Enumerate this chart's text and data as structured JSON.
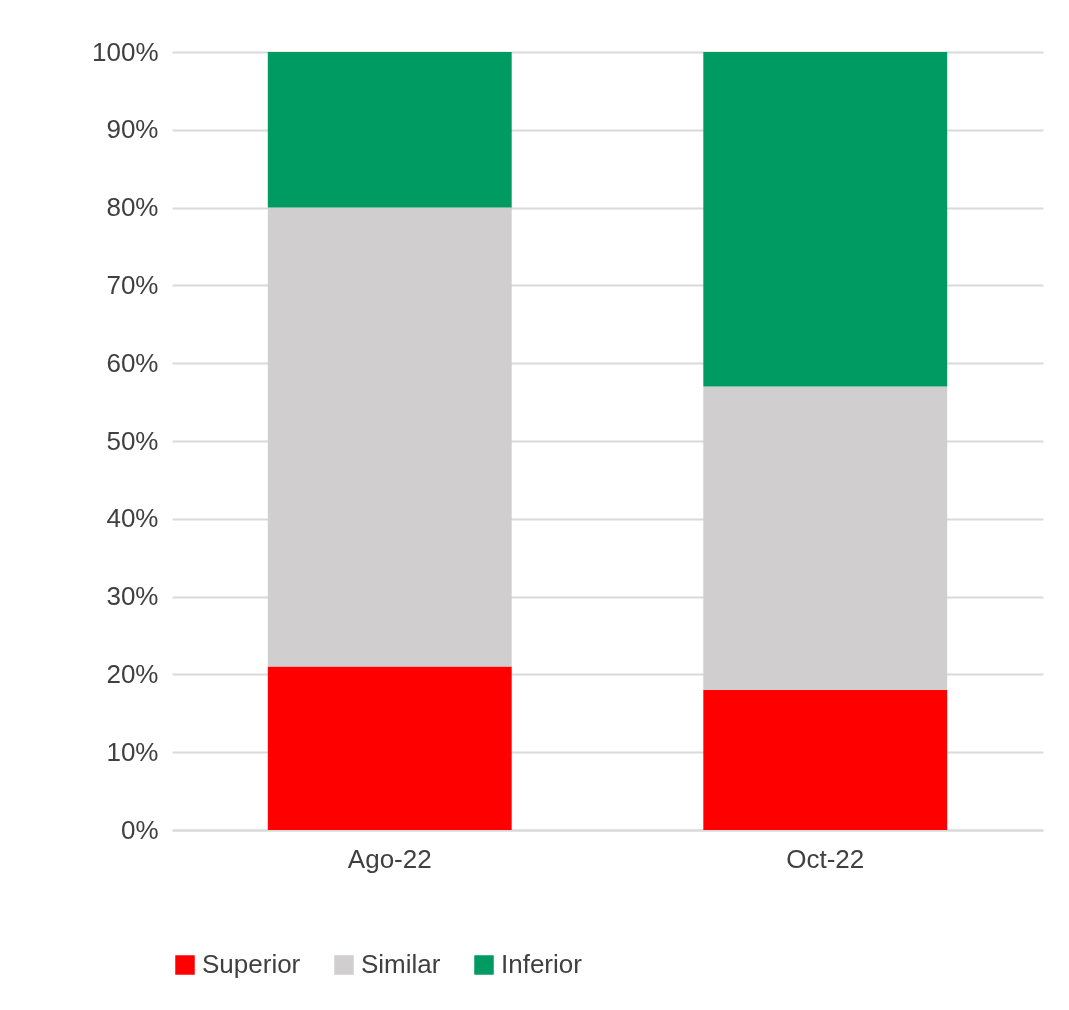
{
  "chart_data": {
    "type": "bar",
    "stacked": true,
    "categories": [
      "Ago-22",
      "Oct-22"
    ],
    "series": [
      {
        "name": "Superior",
        "color": "#ff0000",
        "values": [
          21,
          18
        ]
      },
      {
        "name": "Similar",
        "color": "#d0cece",
        "values": [
          59,
          39
        ]
      },
      {
        "name": "Inferior",
        "color": "#009a63",
        "values": [
          20,
          43
        ]
      }
    ],
    "ylim": [
      0,
      100
    ],
    "yticks": [
      {
        "value": 0,
        "label": "0%"
      },
      {
        "value": 10,
        "label": "10%"
      },
      {
        "value": 20,
        "label": "20%"
      },
      {
        "value": 30,
        "label": "30%"
      },
      {
        "value": 40,
        "label": "40%"
      },
      {
        "value": 50,
        "label": "50%"
      },
      {
        "value": 60,
        "label": "60%"
      },
      {
        "value": 70,
        "label": "70%"
      },
      {
        "value": 80,
        "label": "80%"
      },
      {
        "value": 90,
        "label": "90%"
      },
      {
        "value": 100,
        "label": "100%"
      }
    ],
    "grid": "y",
    "legend": "bottom"
  }
}
